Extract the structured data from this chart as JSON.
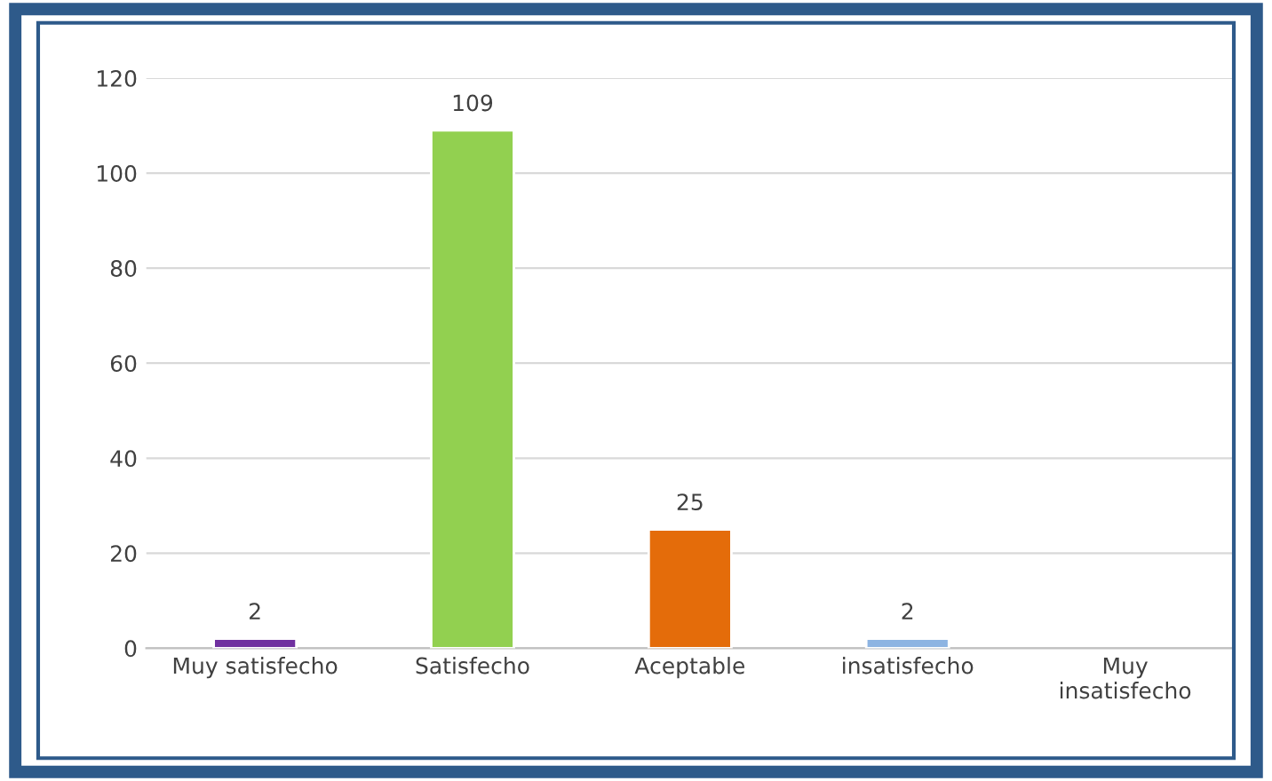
{
  "chart_data": {
    "type": "bar",
    "categories": [
      "Muy satisfecho",
      "Satisfecho",
      "Aceptable",
      "insatisfecho",
      "Muy\ninsatisfecho"
    ],
    "values": [
      2,
      109,
      25,
      2,
      null
    ],
    "colors": [
      "#7030a0",
      "#92d050",
      "#e46c0a",
      "#8db4e2",
      "#7f7f7f"
    ],
    "value_labels": [
      "2",
      "109",
      "25",
      "2",
      null
    ],
    "ylim": [
      0,
      120
    ],
    "yticks": [
      0,
      20,
      40,
      60,
      80,
      100,
      120
    ],
    "grid": "y",
    "legend": false
  }
}
